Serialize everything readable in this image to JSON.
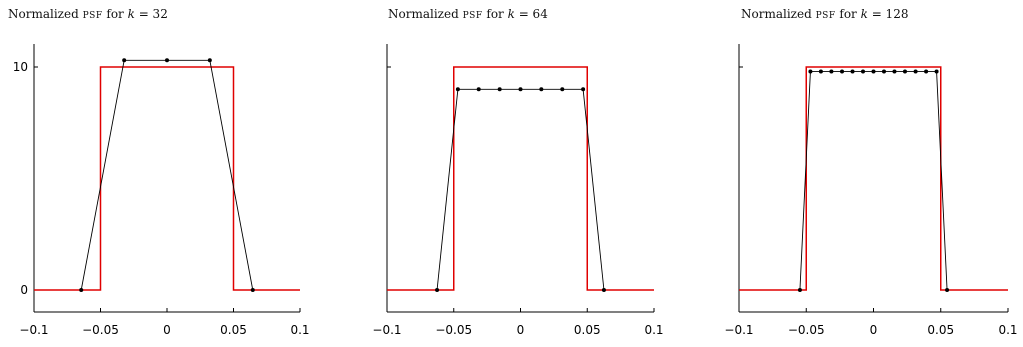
{
  "colors": {
    "box": "#e00000",
    "samples": "#000000",
    "axis": "#000000"
  },
  "chart_data": [
    {
      "type": "line",
      "title": {
        "prefix": "Normalized ",
        "psf": "psf",
        "for": " for ",
        "k": "k",
        "eq": " = 32"
      },
      "xlim": [
        -0.1,
        0.1
      ],
      "ylim": [
        -0.6,
        11
      ],
      "x_ticks": [
        -0.1,
        -0.05,
        0,
        0.05,
        0.1
      ],
      "x_tick_labels": [
        "−0.1",
        "−0.05",
        "0",
        "0.05",
        "0.1"
      ],
      "y_ticks": [
        0,
        10
      ],
      "y_tick_labels": [
        "0",
        "10"
      ],
      "show_y_labels": true,
      "series": [
        {
          "style": "box",
          "x": [
            -0.1,
            -0.05,
            -0.05,
            0.05,
            0.05,
            0.1
          ],
          "y": [
            0,
            0,
            10,
            10,
            0,
            0
          ]
        },
        {
          "style": "samples",
          "x": [
            -0.0645,
            -0.0322,
            0,
            0.0322,
            0.0645
          ],
          "y": [
            0,
            10.3,
            10.3,
            10.3,
            0
          ]
        }
      ]
    },
    {
      "type": "line",
      "title": {
        "prefix": "Normalized ",
        "psf": "psf",
        "for": " for ",
        "k": "k",
        "eq": " = 64"
      },
      "xlim": [
        -0.1,
        0.1
      ],
      "ylim": [
        -0.6,
        11
      ],
      "x_ticks": [
        -0.1,
        -0.05,
        0,
        0.05,
        0.1
      ],
      "x_tick_labels": [
        "−0.1",
        "−0.05",
        "0",
        "0.05",
        "0.1"
      ],
      "y_ticks": [
        0,
        10
      ],
      "y_tick_labels": [
        "",
        ""
      ],
      "show_y_labels": false,
      "series": [
        {
          "style": "box",
          "x": [
            -0.1,
            -0.05,
            -0.05,
            0.05,
            0.05,
            0.1
          ],
          "y": [
            0,
            0,
            10,
            10,
            0,
            0
          ]
        },
        {
          "style": "samples",
          "x": [
            -0.0625,
            -0.0469,
            -0.0313,
            -0.0156,
            0,
            0.0156,
            0.0313,
            0.0469,
            0.0625
          ],
          "y": [
            0,
            9,
            9,
            9,
            9,
            9,
            9,
            9,
            0
          ]
        }
      ]
    },
    {
      "type": "line",
      "title": {
        "prefix": "Normalized ",
        "psf": "psf",
        "for": " for ",
        "k": "k",
        "eq": " = 128"
      },
      "xlim": [
        -0.1,
        0.1
      ],
      "ylim": [
        -0.6,
        11
      ],
      "x_ticks": [
        -0.1,
        -0.05,
        0,
        0.05,
        0.1
      ],
      "x_tick_labels": [
        "−0.1",
        "−0.05",
        "0",
        "0.05",
        "0.1"
      ],
      "y_ticks": [
        0,
        10
      ],
      "y_tick_labels": [
        "",
        ""
      ],
      "show_y_labels": false,
      "series": [
        {
          "style": "box",
          "x": [
            -0.1,
            -0.05,
            -0.05,
            0.05,
            0.05,
            0.1
          ],
          "y": [
            0,
            0,
            10,
            10,
            0,
            0
          ]
        },
        {
          "style": "samples",
          "x": [
            -0.0547,
            -0.0469,
            -0.0391,
            -0.0313,
            -0.0234,
            -0.0156,
            -0.0078,
            0,
            0.0078,
            0.0156,
            0.0234,
            0.0313,
            0.0391,
            0.0469,
            0.0547
          ],
          "y": [
            0,
            9.8,
            9.8,
            9.8,
            9.8,
            9.8,
            9.8,
            9.8,
            9.8,
            9.8,
            9.8,
            9.8,
            9.8,
            9.8,
            0
          ]
        }
      ]
    }
  ]
}
